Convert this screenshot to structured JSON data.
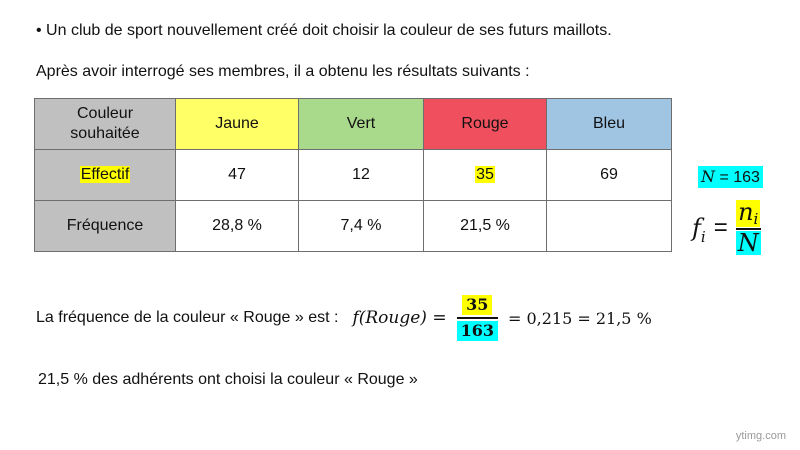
{
  "intro": "• Un club de sport nouvellement créé doit choisir la couleur de ses futurs maillots.",
  "intro2": "Après avoir interrogé ses membres, il a obtenu les résultats suivants :",
  "table": {
    "header": [
      "Couleur souhaitée",
      "Jaune",
      "Vert",
      "Rouge",
      "Bleu"
    ],
    "header_colors": [
      "#c0c0c0",
      "#ffff66",
      "#a9d98b",
      "#f0505e",
      "#9fc5e3"
    ],
    "effectif_label": "Effectif",
    "effectifs": [
      "47",
      "12",
      "35",
      "69"
    ],
    "frequence_label": "Fréquence",
    "frequences": [
      "28,8 %",
      "7,4 %",
      "21,5 %",
      ""
    ]
  },
  "side": {
    "n_total": "N = 163",
    "fi": "f",
    "fi_sub": "i",
    "equals": "=",
    "numer": "n",
    "numer_sub": "i",
    "denom": "N"
  },
  "rouge_calc": {
    "prefix": "La fréquence de la couleur  « Rouge » est :",
    "lhs": "f(Rouge) =",
    "numerator": "35",
    "denominator": "163",
    "rhs": "= 0,215  =  21,5 %"
  },
  "conclusion": "21,5 % des adhérents ont choisi la couleur « Rouge »",
  "watermark": "ytimg.com"
}
